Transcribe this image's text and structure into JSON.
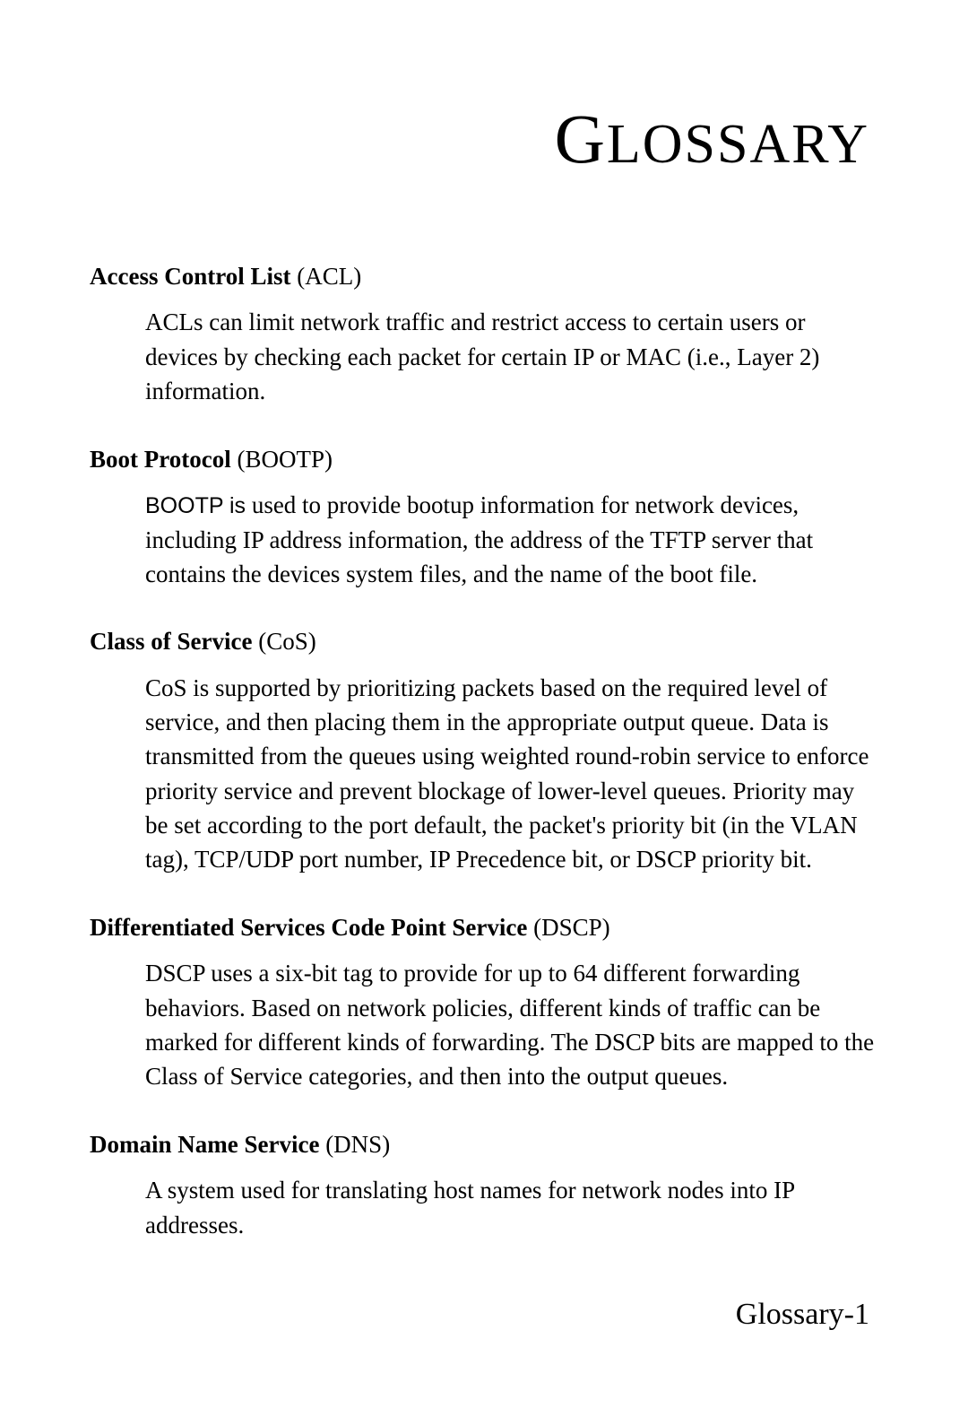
{
  "title_cap": "G",
  "title_rest": "LOSSARY",
  "entries": [
    {
      "term_bold": "Access Control List",
      "term_paren": " (ACL)",
      "def_prefix_sans": "",
      "def_rest": "ACLs can limit network traffic and restrict access to certain users or devices by checking each packet for certain IP or MAC (i.e., Layer 2) information."
    },
    {
      "term_bold": "Boot Protocol",
      "term_paren": " (BOOTP)",
      "def_prefix_sans": "BOOTP is",
      "def_rest": " used to provide bootup information for network devices, including IP address information, the address of the TFTP server that contains the devices system files, and the name of the boot file."
    },
    {
      "term_bold": "Class of Service",
      "term_paren": " (CoS)",
      "def_prefix_sans": "",
      "def_rest": "CoS is supported by prioritizing packets based on the required level of service, and then placing them in the appropriate output queue. Data is transmitted from the queues using weighted round-robin service to enforce priority service and prevent blockage of lower-level queues. Priority may be set according to the port default, the packet's priority bit (in the VLAN tag), TCP/UDP port number, IP Precedence bit, or DSCP priority bit."
    },
    {
      "term_bold": "Differentiated Services Code Point Service",
      "term_paren": " (DSCP)",
      "def_prefix_sans": "",
      "def_rest": "DSCP uses a six-bit tag to provide for up to 64 different forwarding behaviors. Based on network policies, different kinds of traffic can be marked for different kinds of forwarding. The DSCP bits are mapped to the Class of Service categories, and then into the output queues."
    },
    {
      "term_bold": "Domain Name Service",
      "term_paren": " (DNS)",
      "def_prefix_sans": "",
      "def_rest": "A system used for translating host names for network nodes into IP addresses."
    }
  ],
  "footer": "Glossary-1"
}
